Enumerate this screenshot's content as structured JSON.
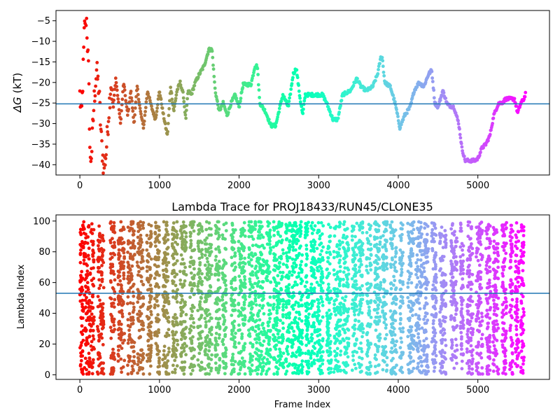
{
  "chart_data": [
    {
      "type": "scatter",
      "title": "",
      "xlabel": "",
      "ylabel": "ΔG (kT)",
      "ylabel_symbol": "ΔG",
      "ylabel_unit": "(kT)",
      "xlim": [
        -300,
        5900
      ],
      "ylim": [
        -42.5,
        -2.5
      ],
      "xticks": [
        0,
        1000,
        2000,
        3000,
        4000,
        5000
      ],
      "xtick_labels": [
        "0",
        "1000",
        "2000",
        "3000",
        "4000",
        "5000"
      ],
      "yticks": [
        -5,
        -10,
        -15,
        -20,
        -25,
        -30,
        -35,
        -40
      ],
      "ytick_labels": [
        "−5",
        "−10",
        "−15",
        "−20",
        "−25",
        "−30",
        "−35",
        "−40"
      ],
      "hline": -25.2,
      "hline_color": "#1f77b4",
      "colormap": "rainbow (red at frame 0 → violet at frame 5600)",
      "x_max": 5600,
      "grid": false,
      "legend": "none",
      "series_knots": [
        [
          0,
          -23
        ],
        [
          20,
          -29
        ],
        [
          40,
          -18
        ],
        [
          55,
          -8
        ],
        [
          70,
          -3.5
        ],
        [
          85,
          -5
        ],
        [
          110,
          -18
        ],
        [
          130,
          -40
        ],
        [
          150,
          -36
        ],
        [
          180,
          -24
        ],
        [
          210,
          -17
        ],
        [
          240,
          -22
        ],
        [
          270,
          -34
        ],
        [
          300,
          -41
        ],
        [
          330,
          -37
        ],
        [
          360,
          -28
        ],
        [
          390,
          -20
        ],
        [
          420,
          -26
        ],
        [
          450,
          -19
        ],
        [
          480,
          -24
        ],
        [
          510,
          -30
        ],
        [
          550,
          -20
        ],
        [
          600,
          -28
        ],
        [
          640,
          -22
        ],
        [
          680,
          -30
        ],
        [
          720,
          -21
        ],
        [
          760,
          -27
        ],
        [
          800,
          -31
        ],
        [
          850,
          -22
        ],
        [
          900,
          -26
        ],
        [
          950,
          -29
        ],
        [
          1000,
          -22
        ],
        [
          1050,
          -28
        ],
        [
          1100,
          -33
        ],
        [
          1140,
          -21
        ],
        [
          1180,
          -27
        ],
        [
          1220,
          -22
        ],
        [
          1260,
          -20
        ],
        [
          1300,
          -23
        ],
        [
          1330,
          -29
        ],
        [
          1360,
          -22
        ],
        [
          1400,
          -23
        ],
        [
          1450,
          -20
        ],
        [
          1500,
          -18
        ],
        [
          1560,
          -16
        ],
        [
          1620,
          -12
        ],
        [
          1660,
          -12
        ],
        [
          1700,
          -22
        ],
        [
          1750,
          -27
        ],
        [
          1800,
          -25
        ],
        [
          1850,
          -28
        ],
        [
          1900,
          -25
        ],
        [
          1950,
          -23
        ],
        [
          2000,
          -26
        ],
        [
          2050,
          -20.5
        ],
        [
          2150,
          -20.5
        ],
        [
          2200,
          -16
        ],
        [
          2230,
          -16
        ],
        [
          2260,
          -25
        ],
        [
          2330,
          -27
        ],
        [
          2400,
          -30.5
        ],
        [
          2460,
          -30.5
        ],
        [
          2500,
          -27
        ],
        [
          2550,
          -23
        ],
        [
          2620,
          -26
        ],
        [
          2680,
          -18
        ],
        [
          2720,
          -16.5
        ],
        [
          2760,
          -23
        ],
        [
          2800,
          -28
        ],
        [
          2830,
          -23
        ],
        [
          2900,
          -23
        ],
        [
          3000,
          -23
        ],
        [
          3050,
          -23
        ],
        [
          3100,
          -25
        ],
        [
          3180,
          -29
        ],
        [
          3240,
          -29
        ],
        [
          3300,
          -23
        ],
        [
          3400,
          -22
        ],
        [
          3480,
          -19
        ],
        [
          3530,
          -21
        ],
        [
          3600,
          -22
        ],
        [
          3680,
          -21
        ],
        [
          3740,
          -18
        ],
        [
          3780,
          -14
        ],
        [
          3800,
          -14
        ],
        [
          3830,
          -20
        ],
        [
          3900,
          -21
        ],
        [
          3960,
          -25
        ],
        [
          4020,
          -31
        ],
        [
          4080,
          -28
        ],
        [
          4150,
          -26
        ],
        [
          4200,
          -22
        ],
        [
          4260,
          -20
        ],
        [
          4320,
          -21
        ],
        [
          4380,
          -18
        ],
        [
          4420,
          -17
        ],
        [
          4460,
          -25
        ],
        [
          4500,
          -26
        ],
        [
          4560,
          -22
        ],
        [
          4620,
          -25.5
        ],
        [
          4700,
          -26
        ],
        [
          4760,
          -30
        ],
        [
          4800,
          -36
        ],
        [
          4840,
          -39
        ],
        [
          4900,
          -39
        ],
        [
          4960,
          -39
        ],
        [
          5000,
          -38.5
        ],
        [
          5050,
          -36
        ],
        [
          5100,
          -35
        ],
        [
          5150,
          -33
        ],
        [
          5200,
          -28
        ],
        [
          5260,
          -25
        ],
        [
          5300,
          -25
        ],
        [
          5350,
          -24
        ],
        [
          5400,
          -24
        ],
        [
          5460,
          -24
        ],
        [
          5500,
          -27.5
        ],
        [
          5540,
          -25
        ],
        [
          5580,
          -24
        ],
        [
          5600,
          -22.5
        ]
      ]
    },
    {
      "type": "scatter",
      "title": "Lambda Trace for PROJ18433/RUN45/CLONE35",
      "xlabel": "Frame Index",
      "ylabel": "Lambda Index",
      "xlim": [
        -300,
        5900
      ],
      "ylim": [
        -3,
        104
      ],
      "xticks": [
        0,
        1000,
        2000,
        3000,
        4000,
        5000
      ],
      "xtick_labels": [
        "0",
        "1000",
        "2000",
        "3000",
        "4000",
        "5000"
      ],
      "yticks": [
        0,
        20,
        40,
        60,
        80,
        100
      ],
      "ytick_labels": [
        "0",
        "20",
        "40",
        "60",
        "80",
        "100"
      ],
      "hline": 53,
      "hline_color": "#1f77b4",
      "colormap": "rainbow (red at frame 0 → violet at frame 5600)",
      "x_max": 5600,
      "grid": false,
      "legend": "none",
      "bands": [
        [
          0,
          180
        ],
        [
          220,
          300
        ],
        [
          380,
          440
        ],
        [
          480,
          560
        ],
        [
          600,
          690
        ],
        [
          720,
          800
        ],
        [
          840,
          900
        ],
        [
          940,
          1000
        ],
        [
          1040,
          1120
        ],
        [
          1160,
          1230
        ],
        [
          1260,
          1340
        ],
        [
          1380,
          1440
        ],
        [
          1480,
          1540
        ],
        [
          1570,
          1660
        ],
        [
          1700,
          1760
        ],
        [
          1790,
          1840
        ],
        [
          1900,
          1960
        ],
        [
          1990,
          2080
        ],
        [
          2120,
          2180
        ],
        [
          2200,
          2320
        ],
        [
          2340,
          2400
        ],
        [
          2430,
          2560
        ],
        [
          2580,
          2640
        ],
        [
          2660,
          2800
        ],
        [
          2830,
          2880
        ],
        [
          2900,
          2960
        ],
        [
          2980,
          3060
        ],
        [
          3100,
          3160
        ],
        [
          3190,
          3280
        ],
        [
          3300,
          3380
        ],
        [
          3420,
          3480
        ],
        [
          3500,
          3560
        ],
        [
          3600,
          3660
        ],
        [
          3700,
          3780
        ],
        [
          3800,
          3860
        ],
        [
          3900,
          3980
        ],
        [
          4020,
          4060
        ],
        [
          4120,
          4200
        ],
        [
          4220,
          4300
        ],
        [
          4320,
          4380
        ],
        [
          4420,
          4480
        ],
        [
          4520,
          4600
        ],
        [
          4660,
          4740
        ],
        [
          4780,
          4820
        ],
        [
          4860,
          4940
        ],
        [
          4980,
          5060
        ],
        [
          5100,
          5160
        ],
        [
          5190,
          5260
        ],
        [
          5300,
          5360
        ],
        [
          5400,
          5440
        ],
        [
          5470,
          5520
        ],
        [
          5540,
          5580
        ]
      ]
    }
  ]
}
